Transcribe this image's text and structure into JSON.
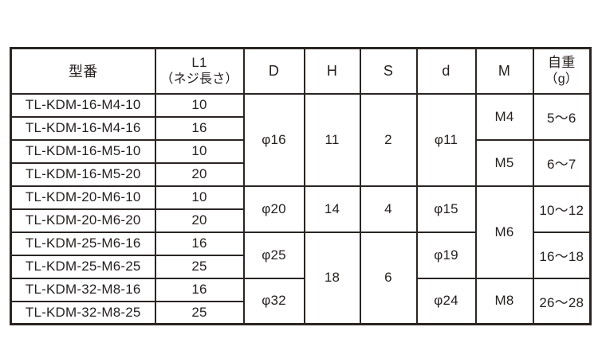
{
  "colors": {
    "background": "#ffffff",
    "text": "#241f1d",
    "grid_line": "#2a2523"
  },
  "table": {
    "headers": [
      {
        "key": "model",
        "label": "型番"
      },
      {
        "key": "l1",
        "label": "L1",
        "sub": "（ネジ長さ）"
      },
      {
        "key": "d-upper",
        "label": "D"
      },
      {
        "key": "h",
        "label": "H"
      },
      {
        "key": "s",
        "label": "S"
      },
      {
        "key": "d-lower",
        "label": "d"
      },
      {
        "key": "m",
        "label": "M"
      },
      {
        "key": "weight",
        "label": "自重",
        "sub": "（g）"
      }
    ],
    "rows": [
      [
        {
          "v": "TL-KDM-16-M4-10"
        },
        {
          "v": "10"
        },
        {
          "v": "φ16",
          "rs": 4
        },
        {
          "v": "11",
          "rs": 4
        },
        {
          "v": "2",
          "rs": 4
        },
        {
          "v": "φ11",
          "rs": 4
        },
        {
          "v": "M4",
          "rs": 2
        },
        {
          "v": "5〜6",
          "rs": 2
        }
      ],
      [
        {
          "v": "TL-KDM-16-M4-16"
        },
        {
          "v": "16"
        }
      ],
      [
        {
          "v": "TL-KDM-16-M5-10"
        },
        {
          "v": "10"
        },
        {
          "v": "M5",
          "rs": 2
        },
        {
          "v": "6〜7",
          "rs": 2
        }
      ],
      [
        {
          "v": "TL-KDM-16-M5-20"
        },
        {
          "v": "20"
        }
      ],
      [
        {
          "v": "TL-KDM-20-M6-10"
        },
        {
          "v": "10"
        },
        {
          "v": "φ20",
          "rs": 2
        },
        {
          "v": "14",
          "rs": 2
        },
        {
          "v": "4",
          "rs": 2
        },
        {
          "v": "φ15",
          "rs": 2
        },
        {
          "v": "M6",
          "rs": 4
        },
        {
          "v": "10〜12",
          "rs": 2
        }
      ],
      [
        {
          "v": "TL-KDM-20-M6-20"
        },
        {
          "v": "20"
        }
      ],
      [
        {
          "v": "TL-KDM-25-M6-16"
        },
        {
          "v": "16"
        },
        {
          "v": "φ25",
          "rs": 2
        },
        {
          "v": "18",
          "rs": 4
        },
        {
          "v": "6",
          "rs": 4
        },
        {
          "v": "φ19",
          "rs": 2
        },
        {
          "v": "16〜18",
          "rs": 2
        }
      ],
      [
        {
          "v": "TL-KDM-25-M6-25"
        },
        {
          "v": "25"
        }
      ],
      [
        {
          "v": "TL-KDM-32-M8-16"
        },
        {
          "v": "16"
        },
        {
          "v": "φ32",
          "rs": 2
        },
        {
          "v": "φ24",
          "rs": 2
        },
        {
          "v": "M8",
          "rs": 2
        },
        {
          "v": "26〜28",
          "rs": 2
        }
      ],
      [
        {
          "v": "TL-KDM-32-M8-25"
        },
        {
          "v": "25"
        }
      ]
    ]
  }
}
